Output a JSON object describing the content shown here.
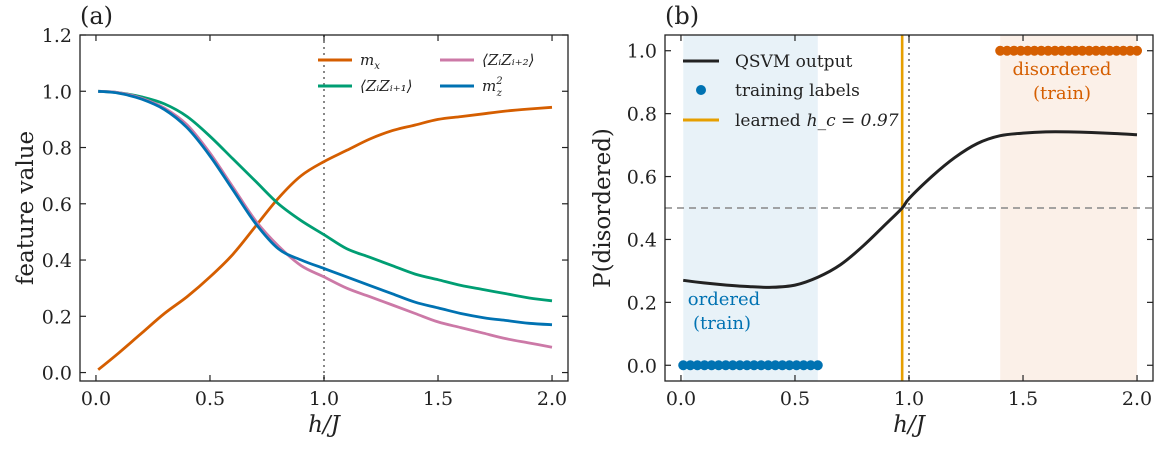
{
  "chart_data": [
    {
      "panel_label": "(a)",
      "type": "line",
      "xlabel": "h/J",
      "ylabel": "feature value",
      "xlim": [
        -0.07,
        2.07
      ],
      "ylim": [
        -0.03,
        1.2
      ],
      "xticks": [
        "0.0",
        "0.5",
        "1.0",
        "1.5",
        "2.0"
      ],
      "yticks": [
        "0.0",
        "0.2",
        "0.4",
        "0.6",
        "0.8",
        "1.0",
        "1.2"
      ],
      "grid": false,
      "legend_position": "upper-right",
      "critical_line": {
        "x": 1.0,
        "style": "dotted"
      },
      "x": [
        0.01,
        0.1,
        0.2,
        0.3,
        0.4,
        0.5,
        0.6,
        0.7,
        0.8,
        0.9,
        1.0,
        1.1,
        1.2,
        1.3,
        1.4,
        1.5,
        1.6,
        1.7,
        1.8,
        1.9,
        2.0
      ],
      "series": [
        {
          "name": "m_x",
          "sup": "",
          "sub": "x",
          "color": "#d55e00",
          "values": [
            0.01,
            0.07,
            0.14,
            0.21,
            0.27,
            0.34,
            0.42,
            0.52,
            0.62,
            0.7,
            0.75,
            0.79,
            0.83,
            0.86,
            0.88,
            0.9,
            0.91,
            0.92,
            0.93,
            0.937,
            0.943
          ]
        },
        {
          "name": "⟨Z_i Z_{i+1}⟩",
          "color": "#009e73",
          "values": [
            1.0,
            0.995,
            0.98,
            0.955,
            0.91,
            0.84,
            0.76,
            0.68,
            0.6,
            0.54,
            0.49,
            0.44,
            0.41,
            0.38,
            0.35,
            0.33,
            0.31,
            0.295,
            0.28,
            0.265,
            0.255
          ]
        },
        {
          "name": "⟨Z_i Z_{i+2}⟩",
          "color": "#cc79a7",
          "values": [
            1.0,
            0.995,
            0.975,
            0.94,
            0.88,
            0.78,
            0.66,
            0.54,
            0.45,
            0.38,
            0.34,
            0.3,
            0.27,
            0.24,
            0.21,
            0.18,
            0.16,
            0.14,
            0.12,
            0.105,
            0.09
          ]
        },
        {
          "name": "m_z^2",
          "color": "#0072b2",
          "values": [
            1.0,
            0.993,
            0.972,
            0.935,
            0.87,
            0.77,
            0.65,
            0.53,
            0.44,
            0.4,
            0.37,
            0.34,
            0.31,
            0.28,
            0.25,
            0.23,
            0.21,
            0.195,
            0.185,
            0.175,
            0.17
          ]
        }
      ],
      "legend": [
        {
          "label": "m",
          "sub": "x",
          "color": "#d55e00"
        },
        {
          "label": "⟨ZᵢZᵢ₊₂⟩",
          "color": "#cc79a7"
        },
        {
          "label": "⟨ZᵢZᵢ₊₁⟩",
          "color": "#009e73"
        },
        {
          "label": "m",
          "sub": "z",
          "sup": "2",
          "color": "#0072b2"
        }
      ]
    },
    {
      "panel_label": "(b)",
      "type": "line",
      "xlabel": "h/J",
      "ylabel": "P(disordered)",
      "xlim": [
        -0.07,
        2.07
      ],
      "ylim": [
        -0.05,
        1.05
      ],
      "xticks": [
        "0.0",
        "0.5",
        "1.0",
        "1.5",
        "2.0"
      ],
      "yticks": [
        "0.0",
        "0.2",
        "0.4",
        "0.6",
        "0.8",
        "1.0"
      ],
      "grid": false,
      "legend_position": "upper-left",
      "threshold_line": {
        "y": 0.5,
        "style": "dashed"
      },
      "critical_line": {
        "x": 1.0,
        "style": "dotted"
      },
      "learned_hc": {
        "x": 0.97,
        "label": "learned",
        "math": "h_c = 0.97",
        "color": "#e69f00"
      },
      "ordered_region": {
        "x": [
          0.01,
          0.6
        ],
        "label_line1": "ordered",
        "label_line2": "(train)",
        "color": "#0072b2"
      },
      "disordered_region": {
        "x": [
          1.4,
          2.0
        ],
        "label_line1": "disordered",
        "label_line2": "(train)",
        "color": "#d55e00"
      },
      "qsvm_output": {
        "name": "QSVM output",
        "color": "#222222",
        "x": [
          0.01,
          0.1,
          0.2,
          0.3,
          0.4,
          0.5,
          0.6,
          0.7,
          0.8,
          0.9,
          0.97,
          1.0,
          1.1,
          1.2,
          1.3,
          1.4,
          1.5,
          1.6,
          1.7,
          1.8,
          1.9,
          2.0
        ],
        "values": [
          0.27,
          0.262,
          0.255,
          0.25,
          0.248,
          0.255,
          0.28,
          0.32,
          0.38,
          0.45,
          0.5,
          0.53,
          0.6,
          0.66,
          0.705,
          0.73,
          0.738,
          0.742,
          0.742,
          0.74,
          0.737,
          0.733
        ]
      },
      "training_labels": {
        "name": "training labels",
        "ordered": {
          "x_start": 0.01,
          "x_end": 0.6,
          "count": 20,
          "value": 0,
          "color": "#0072b2"
        },
        "disordered": {
          "x_start": 1.4,
          "x_end": 2.0,
          "count": 21,
          "value": 1,
          "color": "#d55e00"
        }
      },
      "legend": [
        {
          "label": "QSVM output",
          "kind": "line",
          "color": "#222222"
        },
        {
          "label": "training labels",
          "kind": "dot",
          "color": "#0072b2"
        },
        {
          "label": "learned",
          "kind": "line",
          "color": "#e69f00"
        }
      ]
    }
  ]
}
